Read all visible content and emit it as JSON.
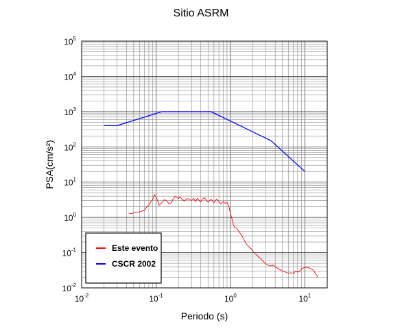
{
  "chart_data": {
    "type": "line",
    "title": "Sitio ASRM",
    "xlabel": "Periodo (s)",
    "ylabel": "PSA(cm/s²)",
    "xscale": "log",
    "yscale": "log",
    "xlim": [
      0.01,
      20
    ],
    "ylim": [
      0.01,
      100000
    ],
    "x_ticks": [
      {
        "base": "10",
        "exp": "-2"
      },
      {
        "base": "10",
        "exp": "-1"
      },
      {
        "base": "10",
        "exp": "0"
      },
      {
        "base": "10",
        "exp": "1"
      }
    ],
    "y_ticks": [
      {
        "base": "10",
        "exp": "-2"
      },
      {
        "base": "10",
        "exp": "-1"
      },
      {
        "base": "10",
        "exp": "0"
      },
      {
        "base": "10",
        "exp": "1"
      },
      {
        "base": "10",
        "exp": "2"
      },
      {
        "base": "10",
        "exp": "3"
      },
      {
        "base": "10",
        "exp": "4"
      },
      {
        "base": "10",
        "exp": "5"
      }
    ],
    "grid": true,
    "legend_position": "bottom-left",
    "series": [
      {
        "name": "Este evento",
        "color": "#ff0000",
        "x": [
          0.043,
          0.048,
          0.052,
          0.058,
          0.064,
          0.07,
          0.075,
          0.08,
          0.085,
          0.09,
          0.095,
          0.1,
          0.105,
          0.11,
          0.115,
          0.12,
          0.13,
          0.14,
          0.15,
          0.16,
          0.17,
          0.18,
          0.19,
          0.2,
          0.21,
          0.22,
          0.24,
          0.26,
          0.28,
          0.3,
          0.32,
          0.34,
          0.36,
          0.38,
          0.4,
          0.42,
          0.45,
          0.48,
          0.5,
          0.55,
          0.6,
          0.65,
          0.7,
          0.75,
          0.8,
          0.85,
          0.9,
          0.95,
          1.0,
          1.05,
          1.1,
          1.15,
          1.2,
          1.3,
          1.4,
          1.5,
          1.6,
          1.7,
          1.8,
          1.9,
          2.0,
          2.2,
          2.4,
          2.6,
          2.8,
          3.0,
          3.2,
          3.5,
          3.8,
          4.0,
          4.5,
          5.0,
          5.5,
          6.0,
          6.5,
          7.0,
          7.5,
          8.0,
          8.5,
          9.0,
          10.0,
          11.0,
          12.0,
          13.0,
          14.0,
          15.0
        ],
        "y": [
          1.3,
          1.3,
          1.4,
          1.4,
          1.5,
          1.6,
          2.0,
          2.2,
          2.8,
          3.2,
          4.4,
          3.8,
          3.0,
          2.2,
          2.4,
          2.6,
          3.2,
          2.9,
          2.4,
          2.6,
          3.3,
          3.9,
          3.7,
          3.4,
          3.8,
          3.4,
          2.9,
          3.4,
          3.3,
          3.0,
          3.5,
          2.8,
          3.5,
          3.0,
          2.7,
          3.3,
          3.6,
          3.0,
          2.7,
          3.3,
          2.6,
          3.3,
          2.8,
          2.4,
          2.8,
          2.5,
          2.7,
          2.1,
          1.3,
          0.9,
          0.6,
          0.5,
          0.5,
          0.4,
          0.32,
          0.25,
          0.19,
          0.16,
          0.14,
          0.13,
          0.11,
          0.09,
          0.075,
          0.066,
          0.055,
          0.048,
          0.044,
          0.042,
          0.044,
          0.04,
          0.034,
          0.03,
          0.028,
          0.026,
          0.027,
          0.025,
          0.03,
          0.028,
          0.029,
          0.035,
          0.038,
          0.038,
          0.035,
          0.032,
          0.025,
          0.02
        ]
      },
      {
        "name": "CSCR 2002",
        "color": "#0000ff",
        "x": [
          0.02,
          0.03,
          0.12,
          0.55,
          3.5,
          10.0
        ],
        "y": [
          400,
          400,
          1000,
          1000,
          150,
          20
        ]
      }
    ]
  }
}
